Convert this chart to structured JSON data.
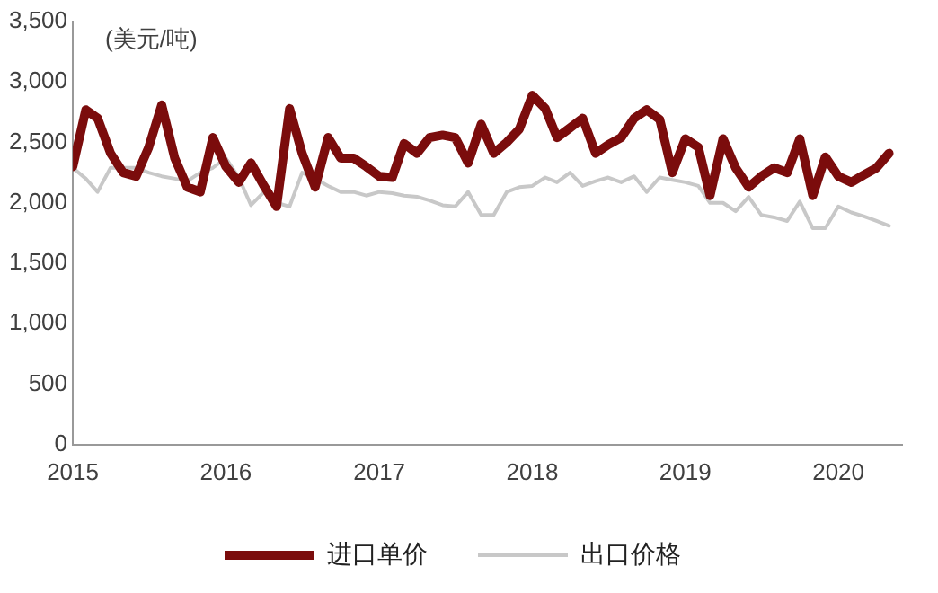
{
  "chart_data": {
    "type": "line",
    "ylabel": "(美元/吨)",
    "x": [
      "2015-01",
      "2015-02",
      "2015-03",
      "2015-04",
      "2015-05",
      "2015-06",
      "2015-07",
      "2015-08",
      "2015-09",
      "2015-10",
      "2015-11",
      "2015-12",
      "2016-01",
      "2016-02",
      "2016-03",
      "2016-04",
      "2016-05",
      "2016-06",
      "2016-07",
      "2016-08",
      "2016-09",
      "2016-10",
      "2016-11",
      "2016-12",
      "2017-01",
      "2017-02",
      "2017-03",
      "2017-04",
      "2017-05",
      "2017-06",
      "2017-07",
      "2017-08",
      "2017-09",
      "2017-10",
      "2017-11",
      "2017-12",
      "2018-01",
      "2018-02",
      "2018-03",
      "2018-04",
      "2018-05",
      "2018-06",
      "2018-07",
      "2018-08",
      "2018-09",
      "2018-10",
      "2018-11",
      "2018-12",
      "2019-01",
      "2019-02",
      "2019-03",
      "2019-04",
      "2019-05",
      "2019-06",
      "2019-07",
      "2019-08",
      "2019-09",
      "2019-10",
      "2019-11",
      "2019-12",
      "2020-01",
      "2020-02",
      "2020-03",
      "2020-04",
      "2020-05"
    ],
    "series": [
      {
        "name": "进口单价",
        "color": "#7b0c0c",
        "values": [
          2300,
          2770,
          2700,
          2410,
          2250,
          2220,
          2460,
          2810,
          2370,
          2130,
          2090,
          2540,
          2300,
          2170,
          2330,
          2140,
          1970,
          2780,
          2410,
          2130,
          2540,
          2370,
          2370,
          2300,
          2220,
          2210,
          2490,
          2410,
          2540,
          2560,
          2540,
          2330,
          2650,
          2410,
          2500,
          2610,
          2890,
          2780,
          2540,
          2620,
          2700,
          2410,
          2480,
          2540,
          2700,
          2770,
          2690,
          2250,
          2530,
          2460,
          2060,
          2530,
          2290,
          2130,
          2220,
          2290,
          2250,
          2530,
          2060,
          2380,
          2220,
          2170,
          2230,
          2290,
          2410
        ]
      },
      {
        "name": "出口价格",
        "color": "#c8c8c8",
        "values": [
          2290,
          2200,
          2090,
          2290,
          2290,
          2290,
          2250,
          2220,
          2200,
          2180,
          2250,
          2290,
          2370,
          2210,
          1980,
          2090,
          2000,
          1970,
          2250,
          2200,
          2140,
          2090,
          2090,
          2060,
          2090,
          2080,
          2060,
          2050,
          2020,
          1980,
          1970,
          2090,
          1900,
          1900,
          2090,
          2130,
          2140,
          2210,
          2170,
          2250,
          2140,
          2180,
          2210,
          2170,
          2220,
          2090,
          2210,
          2190,
          2170,
          2140,
          2000,
          2000,
          1930,
          2050,
          1900,
          1880,
          1850,
          2010,
          1790,
          1790,
          1970,
          1920,
          1890,
          1850,
          1810
        ]
      }
    ],
    "xlim": [
      "2015-01",
      "2020-06"
    ],
    "xticks": [
      "2015",
      "2016",
      "2017",
      "2018",
      "2019",
      "2020"
    ],
    "ylim": [
      0,
      3500
    ],
    "yticks": [
      0,
      500,
      {
        "value": 1000,
        "label": "1,000"
      },
      {
        "value": 1500,
        "label": "1,500"
      },
      {
        "value": 2000,
        "label": "2,000"
      },
      {
        "value": 2500,
        "label": "2,500"
      },
      {
        "value": 3000,
        "label": "3,000"
      },
      {
        "value": 3500,
        "label": "3,500"
      }
    ],
    "grid": false,
    "legend": "bottom",
    "marker": "none",
    "line_style": "solid"
  }
}
